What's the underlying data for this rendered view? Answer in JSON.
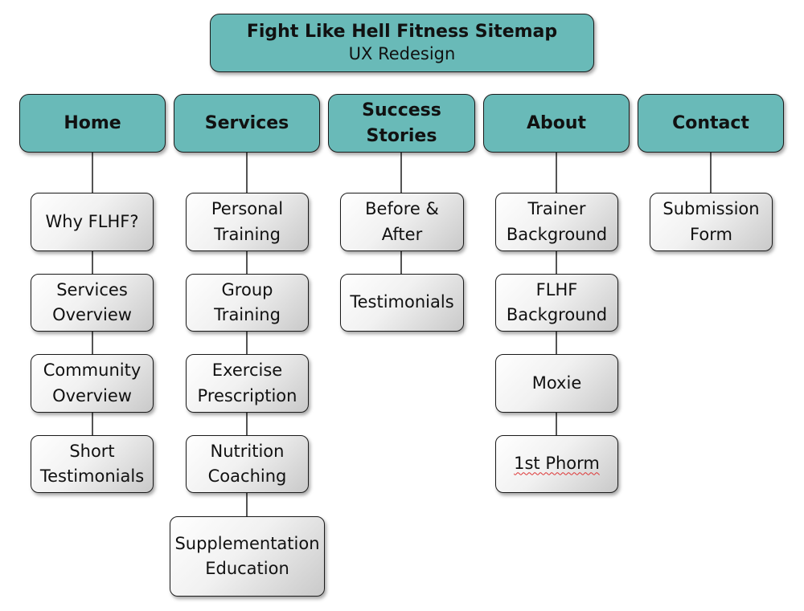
{
  "colors": {
    "teal_fill": "#69bab8",
    "child_light": "#ffffff",
    "child_dark": "#c9c9c9",
    "line": "#1a1a1a",
    "spellcheck_underline": "#dd3333"
  },
  "header": {
    "title": "Fight Like Hell Fitness Sitemap",
    "subtitle": "UX Redesign"
  },
  "sections": [
    {
      "label": "Home",
      "children": [
        "Why FLHF?",
        "Services Overview",
        "Community Overview",
        "Short Testimonials"
      ]
    },
    {
      "label": "Services",
      "children": [
        "Personal Training",
        "Group Training",
        "Exercise Prescription",
        "Nutrition Coaching",
        "Supplementation Education"
      ]
    },
    {
      "label": "Success Stories",
      "children": [
        "Before & After",
        "Testimonials"
      ]
    },
    {
      "label": "About",
      "children": [
        "Trainer Background",
        "FLHF Background",
        "Moxie",
        "1st Phorm"
      ]
    },
    {
      "label": "Contact",
      "children": [
        "Submission Form"
      ]
    }
  ]
}
